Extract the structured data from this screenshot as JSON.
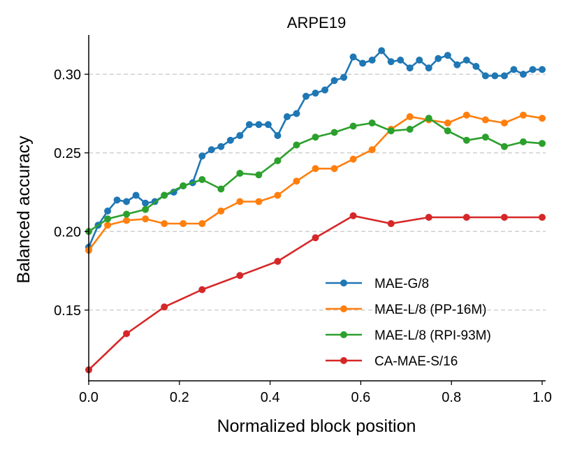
{
  "chart_data": {
    "type": "line",
    "title": "ARPE19",
    "xlabel": "Normalized block position",
    "ylabel": "Balanced accuracy",
    "xlim": [
      0.0,
      1.0
    ],
    "ylim": [
      0.105,
      0.325
    ],
    "xticks": [
      0.0,
      0.2,
      0.4,
      0.6,
      0.8,
      1.0
    ],
    "xtick_labels": [
      "0.0",
      "0.2",
      "0.4",
      "0.6",
      "0.8",
      "1.0"
    ],
    "yticks": [
      0.15,
      0.2,
      0.25,
      0.3
    ],
    "ytick_labels": [
      "0.15",
      "0.20",
      "0.25",
      "0.30"
    ],
    "grid": "horizontal dashed",
    "legend_position": "lower-right",
    "series": [
      {
        "name": "MAE-G/8",
        "color": "#1f77b4",
        "x": [
          0.0,
          0.0208,
          0.0417,
          0.0625,
          0.0833,
          0.1042,
          0.125,
          0.1458,
          0.1667,
          0.1875,
          0.2083,
          0.2292,
          0.25,
          0.2708,
          0.2917,
          0.3125,
          0.3333,
          0.3542,
          0.375,
          0.3958,
          0.4167,
          0.4375,
          0.4583,
          0.4792,
          0.5,
          0.5208,
          0.5417,
          0.5625,
          0.5833,
          0.6042,
          0.625,
          0.6458,
          0.6667,
          0.6875,
          0.7083,
          0.7292,
          0.75,
          0.7708,
          0.7917,
          0.8125,
          0.8333,
          0.8542,
          0.875,
          0.8958,
          0.9167,
          0.9375,
          0.9583,
          0.9792,
          1.0
        ],
        "values": [
          0.19,
          0.204,
          0.213,
          0.22,
          0.219,
          0.223,
          0.218,
          0.219,
          0.223,
          0.225,
          0.229,
          0.231,
          0.248,
          0.252,
          0.254,
          0.258,
          0.261,
          0.268,
          0.268,
          0.268,
          0.261,
          0.273,
          0.275,
          0.286,
          0.288,
          0.29,
          0.296,
          0.298,
          0.311,
          0.307,
          0.309,
          0.315,
          0.308,
          0.309,
          0.304,
          0.309,
          0.304,
          0.31,
          0.312,
          0.306,
          0.309,
          0.305,
          0.299,
          0.299,
          0.299,
          0.303,
          0.3,
          0.303,
          0.303
        ]
      },
      {
        "name": "MAE-L/8 (PP-16M)",
        "color": "#ff7f0e",
        "x": [
          0.0,
          0.0417,
          0.0833,
          0.125,
          0.1667,
          0.2083,
          0.25,
          0.2917,
          0.3333,
          0.375,
          0.4167,
          0.4583,
          0.5,
          0.5417,
          0.5833,
          0.625,
          0.6667,
          0.7083,
          0.75,
          0.7917,
          0.8333,
          0.875,
          0.9167,
          0.9583,
          1.0
        ],
        "values": [
          0.188,
          0.204,
          0.207,
          0.208,
          0.205,
          0.205,
          0.205,
          0.213,
          0.219,
          0.219,
          0.223,
          0.232,
          0.24,
          0.24,
          0.246,
          0.252,
          0.265,
          0.273,
          0.271,
          0.269,
          0.274,
          0.271,
          0.269,
          0.274,
          0.272
        ]
      },
      {
        "name": "MAE-L/8 (RPI-93M)",
        "color": "#2ca02c",
        "x": [
          0.0,
          0.0417,
          0.0833,
          0.125,
          0.1667,
          0.2083,
          0.25,
          0.2917,
          0.3333,
          0.375,
          0.4167,
          0.4583,
          0.5,
          0.5417,
          0.5833,
          0.625,
          0.6667,
          0.7083,
          0.75,
          0.7917,
          0.8333,
          0.875,
          0.9167,
          0.9583,
          1.0
        ],
        "values": [
          0.2,
          0.208,
          0.211,
          0.214,
          0.223,
          0.229,
          0.233,
          0.227,
          0.237,
          0.236,
          0.245,
          0.255,
          0.26,
          0.263,
          0.267,
          0.269,
          0.264,
          0.265,
          0.272,
          0.264,
          0.258,
          0.26,
          0.254,
          0.257,
          0.256
        ]
      },
      {
        "name": "CA-MAE-S/16",
        "color": "#d62728",
        "x": [
          0.0,
          0.0833,
          0.1667,
          0.25,
          0.3333,
          0.4167,
          0.5,
          0.5833,
          0.6667,
          0.75,
          0.8333,
          0.9167,
          1.0
        ],
        "values": [
          0.112,
          0.135,
          0.152,
          0.163,
          0.172,
          0.181,
          0.196,
          0.21,
          0.205,
          0.209,
          0.209,
          0.209,
          0.209
        ]
      }
    ]
  }
}
